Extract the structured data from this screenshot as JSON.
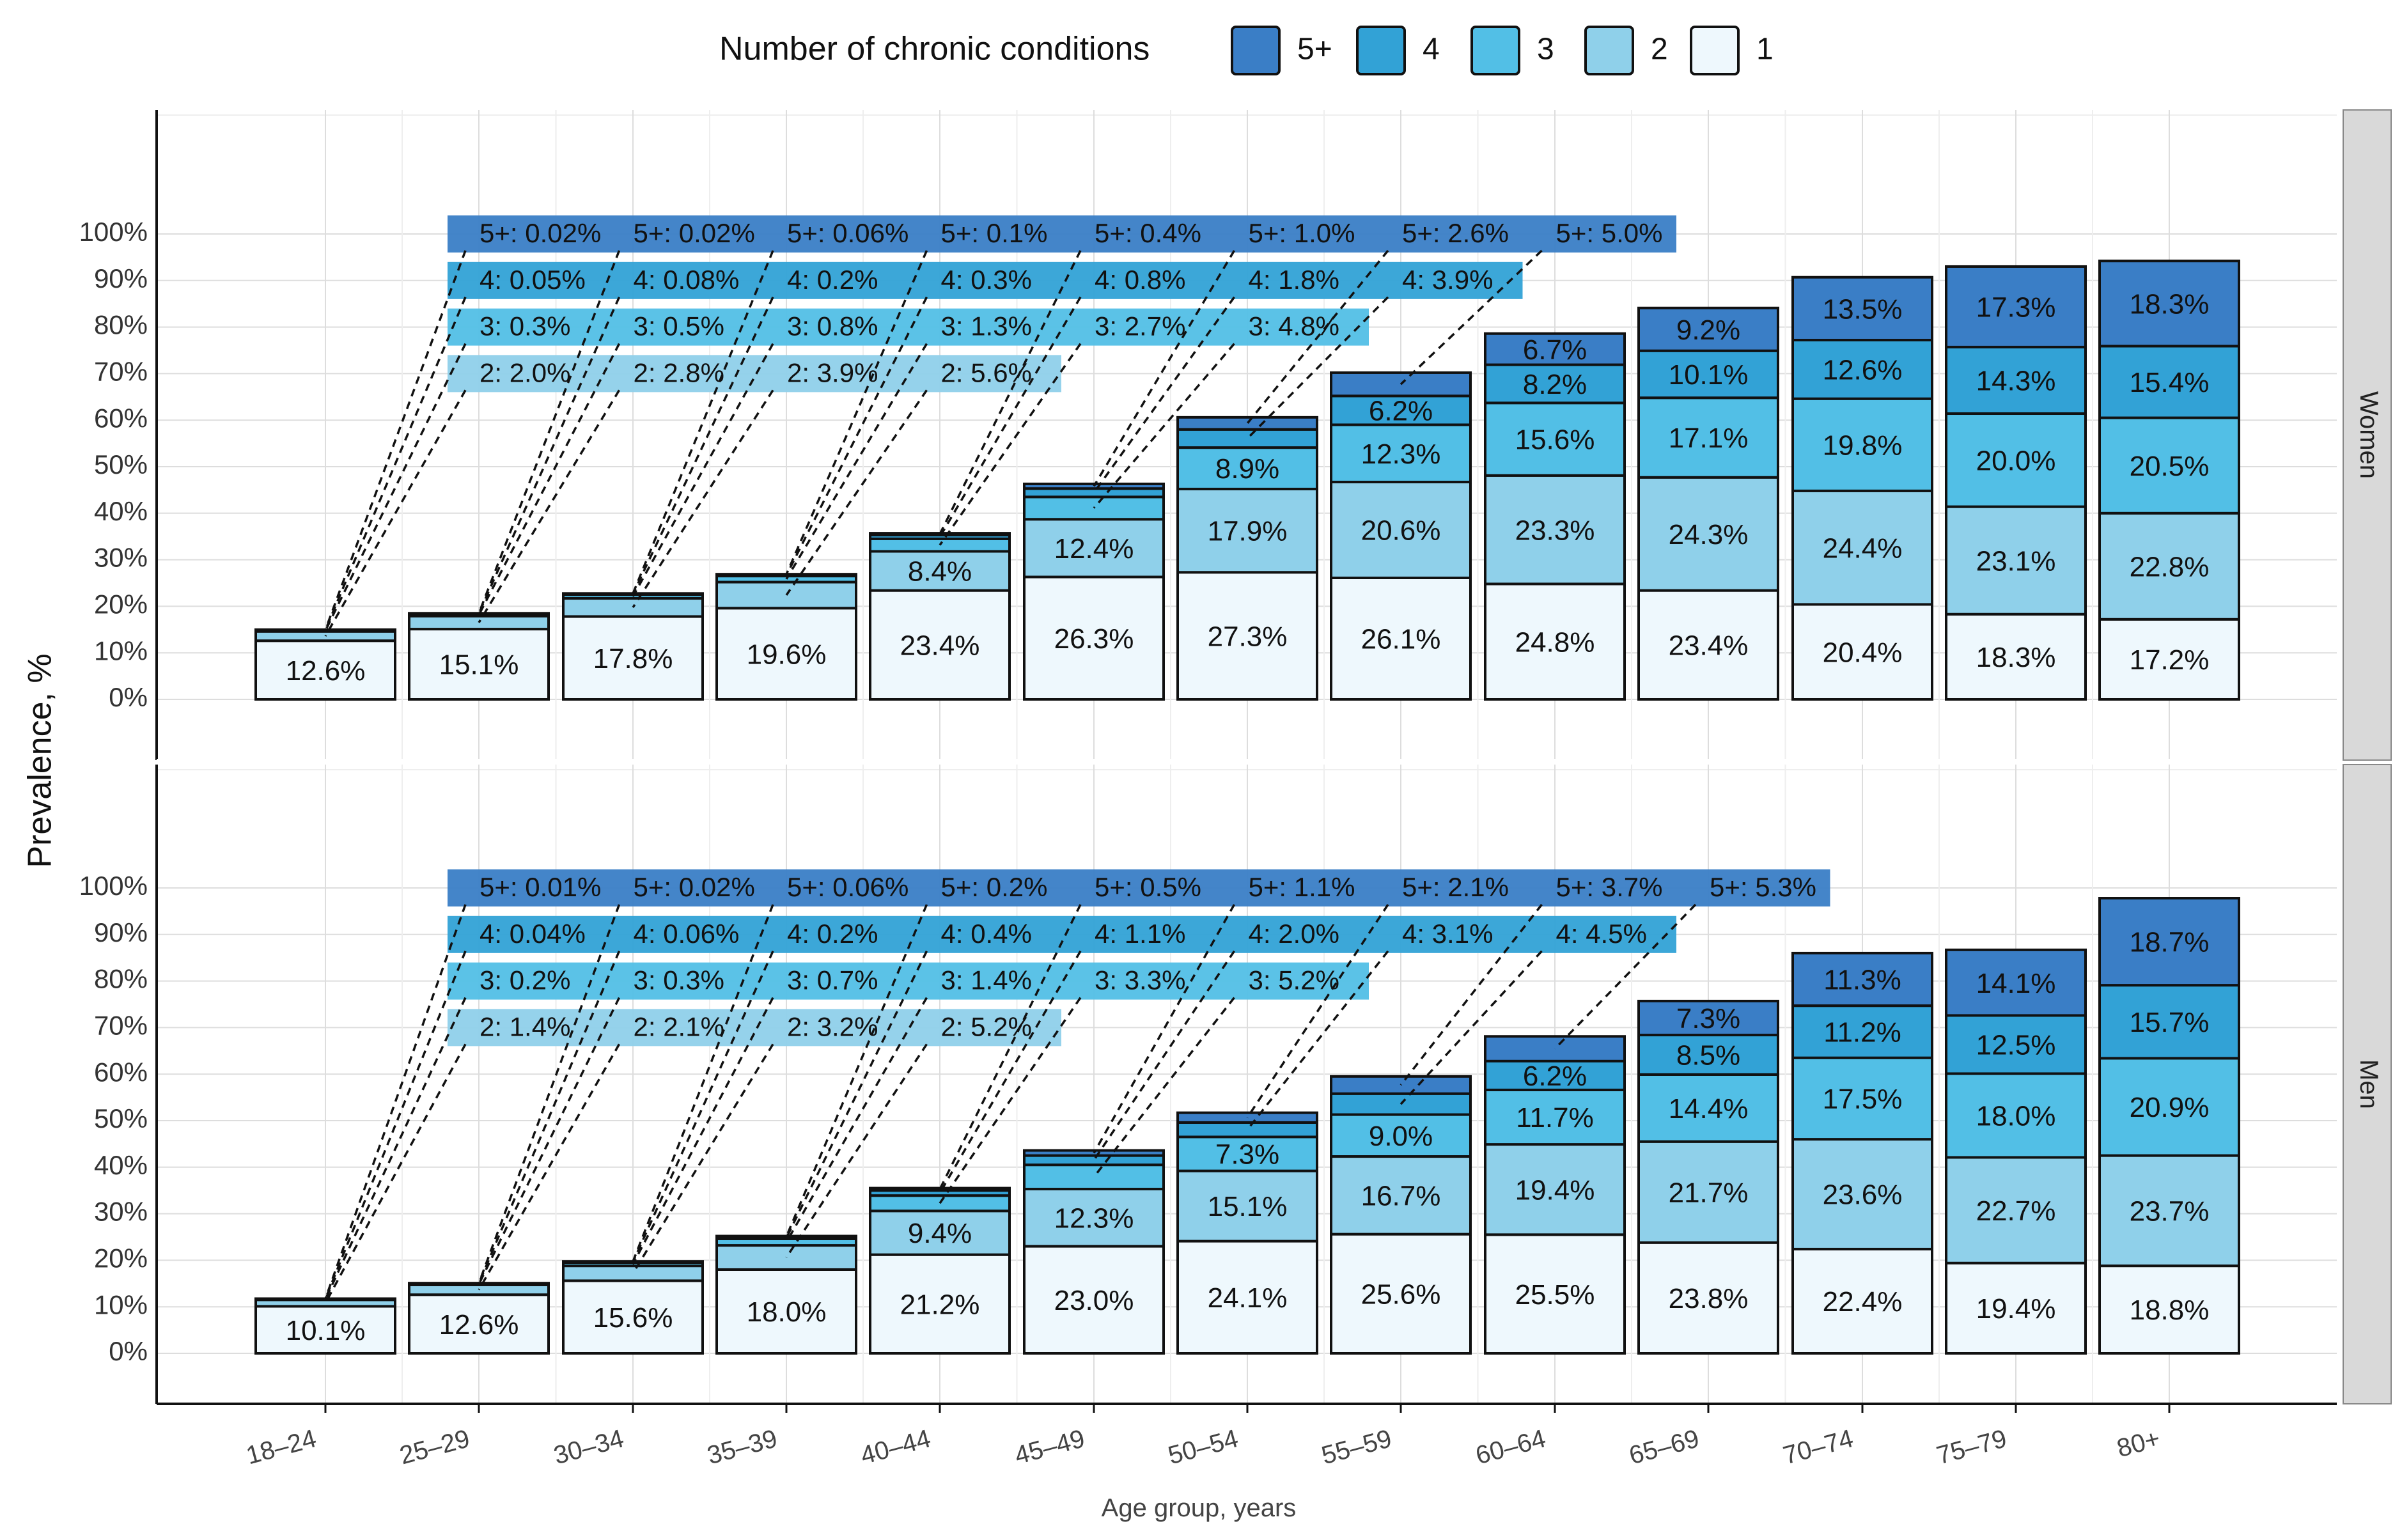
{
  "legend": {
    "title": "Number of chronic conditions",
    "items": [
      {
        "label": "5+",
        "color": "#3a7ec6"
      },
      {
        "label": "4",
        "color": "#32a2d6"
      },
      {
        "label": "3",
        "color": "#52bfe6"
      },
      {
        "label": "2",
        "color": "#8fd0ea"
      },
      {
        "label": "1",
        "color": "#eef8fd"
      }
    ]
  },
  "chart_data": {
    "type": "bar",
    "stacked": true,
    "xlabel": "Age group, years",
    "ylabel": "Prevalence, %",
    "ylim": [
      0,
      100
    ],
    "y_ticks": [
      "0%",
      "10%",
      "20%",
      "30%",
      "40%",
      "50%",
      "60%",
      "70%",
      "80%",
      "90%",
      "100%"
    ],
    "categories": [
      "18–24",
      "25–29",
      "30–34",
      "35–39",
      "40–44",
      "45–49",
      "50–54",
      "55–59",
      "60–64",
      "65–69",
      "70–74",
      "75–79",
      "80+"
    ],
    "series_order": [
      "1",
      "2",
      "3",
      "4",
      "5+"
    ],
    "panels": [
      {
        "name": "Women",
        "values": {
          "1": [
            12.6,
            15.1,
            17.8,
            19.6,
            23.4,
            26.3,
            27.3,
            26.1,
            24.8,
            23.4,
            20.4,
            18.3,
            17.2
          ],
          "2": [
            2.0,
            2.8,
            3.9,
            5.6,
            8.4,
            12.4,
            17.9,
            20.6,
            23.3,
            24.3,
            24.4,
            23.1,
            22.8
          ],
          "3": [
            0.3,
            0.5,
            0.8,
            1.3,
            2.7,
            4.8,
            8.9,
            12.3,
            15.6,
            17.1,
            19.8,
            20.0,
            20.5
          ],
          "4": [
            0.05,
            0.08,
            0.2,
            0.3,
            0.8,
            1.8,
            3.9,
            6.2,
            8.2,
            10.1,
            12.6,
            14.3,
            15.4
          ],
          "5+": [
            0.02,
            0.02,
            0.06,
            0.1,
            0.4,
            1.0,
            2.6,
            5.0,
            6.7,
            9.2,
            13.5,
            17.3,
            18.3
          ]
        },
        "bar_labels": {
          "1": [
            "12.6%",
            "15.1%",
            "17.8%",
            "19.6%",
            "23.4%",
            "26.3%",
            "27.3%",
            "26.1%",
            "24.8%",
            "23.4%",
            "20.4%",
            "18.3%",
            "17.2%"
          ],
          "2": [
            "",
            "",
            "",
            "",
            "8.4%",
            "12.4%",
            "17.9%",
            "20.6%",
            "23.3%",
            "24.3%",
            "24.4%",
            "23.1%",
            "22.8%"
          ],
          "3": [
            "",
            "",
            "",
            "",
            "",
            "",
            "8.9%",
            "12.3%",
            "15.6%",
            "17.1%",
            "19.8%",
            "20.0%",
            "20.5%"
          ],
          "4": [
            "",
            "",
            "",
            "",
            "",
            "",
            "",
            "6.2%",
            "8.2%",
            "10.1%",
            "12.6%",
            "14.3%",
            "15.4%"
          ],
          "5+": [
            "",
            "",
            "",
            "",
            "",
            "",
            "",
            "",
            "6.7%",
            "9.2%",
            "13.5%",
            "17.3%",
            "18.3%"
          ]
        },
        "callouts": {
          "5+": [
            "5+: 0.02%",
            "5+: 0.02%",
            "5+: 0.06%",
            "5+: 0.1%",
            "5+: 0.4%",
            "5+: 1.0%",
            "5+: 2.6%",
            "5+: 5.0%"
          ],
          "4": [
            "4: 0.05%",
            "4: 0.08%",
            "4: 0.2%",
            "4: 0.3%",
            "4: 0.8%",
            "4: 1.8%",
            "4: 3.9%"
          ],
          "3": [
            "3: 0.3%",
            "3: 0.5%",
            "3: 0.8%",
            "3: 1.3%",
            "3: 2.7%",
            "3: 4.8%"
          ],
          "2": [
            "2: 2.0%",
            "2: 2.8%",
            "2: 3.9%",
            "2: 5.6%"
          ]
        }
      },
      {
        "name": "Men",
        "values": {
          "1": [
            10.1,
            12.6,
            15.6,
            18.0,
            21.2,
            23.0,
            24.1,
            25.6,
            25.5,
            23.8,
            22.4,
            19.4,
            18.8
          ],
          "2": [
            1.4,
            2.1,
            3.2,
            5.2,
            9.4,
            12.3,
            15.1,
            16.7,
            19.4,
            21.7,
            23.6,
            22.7,
            23.7
          ],
          "3": [
            0.2,
            0.3,
            0.7,
            1.4,
            3.3,
            5.2,
            7.3,
            9.0,
            11.7,
            14.4,
            17.5,
            18.0,
            20.9
          ],
          "4": [
            0.04,
            0.06,
            0.2,
            0.4,
            1.1,
            2.0,
            3.1,
            4.5,
            6.2,
            8.5,
            11.2,
            12.5,
            15.7
          ],
          "5+": [
            0.01,
            0.02,
            0.06,
            0.2,
            0.5,
            1.1,
            2.1,
            3.7,
            5.3,
            7.3,
            11.3,
            14.1,
            18.7
          ]
        },
        "bar_labels": {
          "1": [
            "10.1%",
            "12.6%",
            "15.6%",
            "18.0%",
            "21.2%",
            "23.0%",
            "24.1%",
            "25.6%",
            "25.5%",
            "23.8%",
            "22.4%",
            "19.4%",
            "18.8%"
          ],
          "2": [
            "",
            "",
            "",
            "",
            "9.4%",
            "12.3%",
            "15.1%",
            "16.7%",
            "19.4%",
            "21.7%",
            "23.6%",
            "22.7%",
            "23.7%"
          ],
          "3": [
            "",
            "",
            "",
            "",
            "",
            "",
            "7.3%",
            "9.0%",
            "11.7%",
            "14.4%",
            "17.5%",
            "18.0%",
            "20.9%"
          ],
          "4": [
            "",
            "",
            "",
            "",
            "",
            "",
            "",
            "",
            "6.2%",
            "8.5%",
            "11.2%",
            "12.5%",
            "15.7%"
          ],
          "5+": [
            "",
            "",
            "",
            "",
            "",
            "",
            "",
            "",
            "",
            "7.3%",
            "11.3%",
            "14.1%",
            "18.7%"
          ]
        },
        "callouts": {
          "5+": [
            "5+: 0.01%",
            "5+: 0.02%",
            "5+: 0.06%",
            "5+: 0.2%",
            "5+: 0.5%",
            "5+: 1.1%",
            "5+: 2.1%",
            "5+: 3.7%",
            "5+: 5.3%"
          ],
          "4": [
            "4: 0.04%",
            "4: 0.06%",
            "4: 0.2%",
            "4: 0.4%",
            "4: 1.1%",
            "4: 2.0%",
            "4: 3.1%",
            "4: 4.5%"
          ],
          "3": [
            "3: 0.2%",
            "3: 0.3%",
            "3: 0.7%",
            "3: 1.4%",
            "3: 3.3%",
            "3: 5.2%"
          ],
          "2": [
            "2: 1.4%",
            "2: 2.1%",
            "2: 3.2%",
            "2: 5.2%"
          ]
        }
      }
    ]
  }
}
